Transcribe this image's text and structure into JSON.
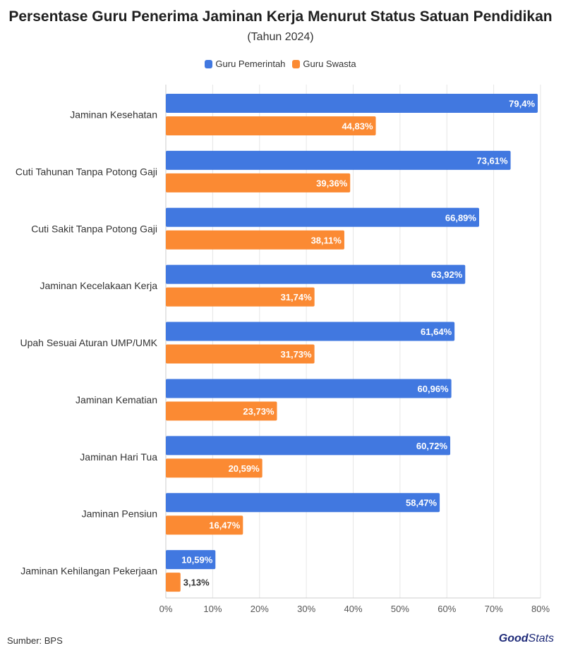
{
  "title": "Persentase Guru Penerima Jaminan Kerja Menurut Status Satuan Pendidikan",
  "subtitle": "(Tahun 2024)",
  "source": "Sumber: BPS",
  "logo": {
    "part1": "Good",
    "part2": "Stats"
  },
  "colors": {
    "series1": "#4178e0",
    "series2": "#fb8a33",
    "grid": "#e6e6e6",
    "axis": "#cccccc"
  },
  "chart_data": {
    "type": "bar",
    "orientation": "horizontal",
    "title": "Persentase Guru Penerima Jaminan Kerja Menurut Status Satuan Pendidikan",
    "subtitle": "(Tahun 2024)",
    "categories": [
      "Jaminan Kesehatan",
      "Cuti Tahunan Tanpa Potong Gaji",
      "Cuti Sakit Tanpa Potong Gaji",
      "Jaminan Kecelakaan Kerja",
      "Upah Sesuai Aturan UMP/UMK",
      "Jaminan Kematian",
      "Jaminan Hari Tua",
      "Jaminan Pensiun",
      "Jaminan Kehilangan Pekerjaan"
    ],
    "series": [
      {
        "name": "Guru Pemerintah",
        "values": [
          79.4,
          73.61,
          66.89,
          63.92,
          61.64,
          60.96,
          60.72,
          58.47,
          10.59
        ],
        "labels": [
          "79,4%",
          "73,61%",
          "66,89%",
          "63,92%",
          "61,64%",
          "60,96%",
          "60,72%",
          "58,47%",
          "10,59%"
        ]
      },
      {
        "name": "Guru Swasta",
        "values": [
          44.83,
          39.36,
          38.11,
          31.74,
          31.73,
          23.73,
          20.59,
          16.47,
          3.13
        ],
        "labels": [
          "44,83%",
          "39,36%",
          "38,11%",
          "31,74%",
          "31,73%",
          "23,73%",
          "20,59%",
          "16,47%",
          "3,13%"
        ]
      }
    ],
    "xlim": [
      0,
      80
    ],
    "xticks": [
      0,
      10,
      20,
      30,
      40,
      50,
      60,
      70,
      80
    ],
    "xtick_labels": [
      "0%",
      "10%",
      "20%",
      "30%",
      "40%",
      "50%",
      "60%",
      "70%",
      "80%"
    ],
    "xlabel": "",
    "ylabel": "",
    "grid": true,
    "legend": "top-center"
  }
}
